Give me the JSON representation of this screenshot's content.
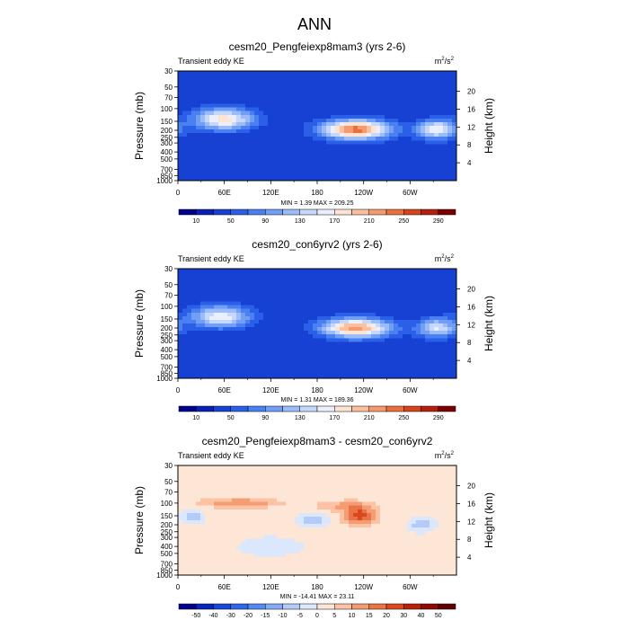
{
  "figure": {
    "title": "ANN"
  },
  "chart_data": [
    {
      "type": "heatmap",
      "title": "cesm20_Pengfeiexp8mam3 (yrs 2-6)",
      "subtitle_left": "Transient eddy KE",
      "units_base": "m",
      "units_exp": "2",
      "units_mid": "/s",
      "units_exp2": "2",
      "ylabel": "Pressure (mb)",
      "y2label": "Height (km)",
      "xticks": [
        "0",
        "60E",
        "120E",
        "180",
        "120W",
        "60W"
      ],
      "xtick_lon": [
        0,
        60,
        120,
        180,
        240,
        300
      ],
      "xlim": [
        0,
        360
      ],
      "yticks": [
        "30",
        "50",
        "70",
        "100",
        "150",
        "200",
        "250",
        "300",
        "400",
        "500",
        "700",
        "850",
        "1000"
      ],
      "ytick_values": [
        30,
        50,
        70,
        100,
        150,
        200,
        250,
        300,
        400,
        500,
        700,
        850,
        1000
      ],
      "ylim": [
        30,
        1000
      ],
      "yscale": "log",
      "y2ticks": [
        "4",
        "8",
        "12",
        "16",
        "20"
      ],
      "y2tick_values": [
        4,
        8,
        12,
        16,
        20
      ],
      "stats": "MIN =    1.39  MAX = 209.25",
      "min": 1.39,
      "max": 209.25,
      "colorbar_labels": [
        "10",
        "50",
        "90",
        "130",
        "170",
        "210",
        "250",
        "290"
      ],
      "levels": [
        10,
        30,
        50,
        70,
        90,
        110,
        130,
        150,
        170,
        190,
        210,
        230,
        250,
        270,
        290
      ],
      "colors": [
        "#00008b",
        "#0a1fb4",
        "#1741d2",
        "#2a5fe8",
        "#4a80f0",
        "#719ff5",
        "#9bbcf8",
        "#c5d8fb",
        "#e9effd",
        "#fde4d2",
        "#fbbf9e",
        "#f59a6e",
        "#e8703f",
        "#d4451c",
        "#b5200c",
        "#7a0000"
      ],
      "features": [
        {
          "lon": 60,
          "p": 140,
          "a": 150,
          "slon": 28,
          "sp": 0.25
        },
        {
          "lon": 230,
          "p": 195,
          "a": 210,
          "slon": 32,
          "sp": 0.22
        },
        {
          "lon": 335,
          "p": 195,
          "a": 140,
          "slon": 18,
          "sp": 0.22
        }
      ],
      "base": 30
    },
    {
      "type": "heatmap",
      "title": "cesm20_con6yrv2 (yrs 2-6)",
      "subtitle_left": "Transient eddy KE",
      "units_base": "m",
      "units_exp": "2",
      "units_mid": "/s",
      "units_exp2": "2",
      "ylabel": "Pressure (mb)",
      "y2label": "Height (km)",
      "xticks": [
        "0",
        "60E",
        "120E",
        "180",
        "120W",
        "60W"
      ],
      "xtick_lon": [
        0,
        60,
        120,
        180,
        240,
        300
      ],
      "xlim": [
        0,
        360
      ],
      "yticks": [
        "30",
        "50",
        "70",
        "100",
        "150",
        "200",
        "250",
        "300",
        "400",
        "500",
        "700",
        "850",
        "1000"
      ],
      "ytick_values": [
        30,
        50,
        70,
        100,
        150,
        200,
        250,
        300,
        400,
        500,
        700,
        850,
        1000
      ],
      "ylim": [
        30,
        1000
      ],
      "yscale": "log",
      "y2ticks": [
        "4",
        "8",
        "12",
        "16",
        "20"
      ],
      "y2tick_values": [
        4,
        8,
        12,
        16,
        20
      ],
      "stats": "MIN =    1.31  MAX = 189.36",
      "min": 1.31,
      "max": 189.36,
      "colorbar_labels": [
        "10",
        "50",
        "90",
        "130",
        "170",
        "210",
        "250",
        "290"
      ],
      "levels": [
        10,
        30,
        50,
        70,
        90,
        110,
        130,
        150,
        170,
        190,
        210,
        230,
        250,
        270,
        290
      ],
      "colors": [
        "#00008b",
        "#0a1fb4",
        "#1741d2",
        "#2a5fe8",
        "#4a80f0",
        "#719ff5",
        "#9bbcf8",
        "#c5d8fb",
        "#e9effd",
        "#fde4d2",
        "#fbbf9e",
        "#f59a6e",
        "#e8703f",
        "#d4451c",
        "#b5200c",
        "#7a0000"
      ],
      "features": [
        {
          "lon": 55,
          "p": 140,
          "a": 135,
          "slon": 28,
          "sp": 0.25
        },
        {
          "lon": 230,
          "p": 200,
          "a": 190,
          "slon": 32,
          "sp": 0.22
        },
        {
          "lon": 335,
          "p": 200,
          "a": 120,
          "slon": 18,
          "sp": 0.22
        }
      ],
      "base": 30
    },
    {
      "type": "heatmap",
      "title": "cesm20_Pengfeiexp8mam3 - cesm20_con6yrv2",
      "subtitle_left": "Transient eddy KE",
      "units_base": "m",
      "units_exp": "2",
      "units_mid": "/s",
      "units_exp2": "2",
      "ylabel": "Pressure (mb)",
      "y2label": "Height (km)",
      "xticks": [
        "0",
        "60E",
        "120E",
        "180",
        "120W",
        "60W"
      ],
      "xtick_lon": [
        0,
        60,
        120,
        180,
        240,
        300
      ],
      "xlim": [
        0,
        360
      ],
      "yticks": [
        "30",
        "50",
        "70",
        "100",
        "150",
        "200",
        "250",
        "300",
        "400",
        "500",
        "700",
        "850",
        "1000"
      ],
      "ytick_values": [
        30,
        50,
        70,
        100,
        150,
        200,
        250,
        300,
        400,
        500,
        700,
        850,
        1000
      ],
      "ylim": [
        30,
        1000
      ],
      "yscale": "log",
      "y2ticks": [
        "4",
        "8",
        "12",
        "16",
        "20"
      ],
      "y2tick_values": [
        4,
        8,
        12,
        16,
        20
      ],
      "stats": "MIN = -14.41  MAX =  23.11",
      "min": -14.41,
      "max": 23.11,
      "colorbar_labels": [
        "-50",
        "-40",
        "-30",
        "-20",
        "-15",
        "-10",
        "-5",
        "0",
        "5",
        "10",
        "15",
        "20",
        "30",
        "40",
        "50"
      ],
      "levels": [
        -50,
        -40,
        -30,
        -20,
        -15,
        -10,
        -5,
        0,
        5,
        10,
        15,
        20,
        30,
        40,
        50
      ],
      "colors": [
        "#00008b",
        "#0b24b8",
        "#1a48d6",
        "#2f66ea",
        "#5588f2",
        "#86aaf6",
        "#b4cbfa",
        "#dbe7fd",
        "#fde6d6",
        "#fbc3a4",
        "#f59d72",
        "#ea7445",
        "#d9481f",
        "#b8220c",
        "#8e0a02",
        "#5c0000"
      ],
      "features": [
        {
          "lon": 80,
          "p": 100,
          "a": 13,
          "slon": 35,
          "sp": 0.1
        },
        {
          "lon": 235,
          "p": 150,
          "a": 21,
          "slon": 14,
          "sp": 0.2
        },
        {
          "lon": 215,
          "p": 110,
          "a": 9,
          "slon": 25,
          "sp": 0.12
        },
        {
          "lon": 20,
          "p": 155,
          "a": -10,
          "slon": 10,
          "sp": 0.14
        },
        {
          "lon": 175,
          "p": 170,
          "a": -12,
          "slon": 12,
          "sp": 0.15
        },
        {
          "lon": 315,
          "p": 200,
          "a": -11,
          "slon": 11,
          "sp": 0.15
        },
        {
          "lon": 120,
          "p": 400,
          "a": -3.5,
          "slon": 40,
          "sp": 0.3
        }
      ],
      "base": 2
    }
  ]
}
